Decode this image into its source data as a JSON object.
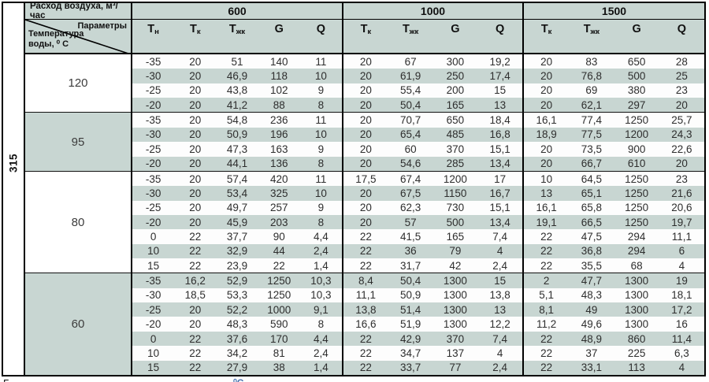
{
  "colors": {
    "shade": "#c8d6d2",
    "border": "#000000",
    "text": "#2e2e2e",
    "caption_blue": "#4a74b0"
  },
  "sidebar": {
    "model_label": "315"
  },
  "header": {
    "air_flow_label": "Расход воздуха, м³/час",
    "params_label": "Параметры",
    "water_temp_label": "Температура воды, ⁰ С",
    "groups": [
      {
        "label": "600",
        "columns": [
          {
            "key": "tn",
            "base": "Т",
            "sub": "н"
          },
          {
            "key": "tk",
            "base": "Т",
            "sub": "к"
          },
          {
            "key": "tzhk",
            "base": "Т",
            "sub": "жк"
          },
          {
            "key": "g",
            "base": "G",
            "sub": ""
          },
          {
            "key": "q",
            "base": "Q",
            "sub": ""
          }
        ]
      },
      {
        "label": "1000",
        "columns": [
          {
            "key": "tk",
            "base": "Т",
            "sub": "к"
          },
          {
            "key": "tzhk",
            "base": "Т",
            "sub": "жк"
          },
          {
            "key": "g",
            "base": "G",
            "sub": ""
          },
          {
            "key": "q",
            "base": "Q",
            "sub": ""
          }
        ]
      },
      {
        "label": "1500",
        "columns": [
          {
            "key": "tk",
            "base": "Т",
            "sub": "к"
          },
          {
            "key": "tzhk",
            "base": "Т",
            "sub": "жк"
          },
          {
            "key": "g",
            "base": "G",
            "sub": ""
          },
          {
            "key": "q",
            "base": "Q",
            "sub": ""
          }
        ]
      }
    ]
  },
  "blocks": [
    {
      "water_temp": "120",
      "rows": [
        {
          "c600": [
            "-35",
            "20",
            "51",
            "140",
            "11"
          ],
          "c1000": [
            "20",
            "67",
            "300",
            "19,2"
          ],
          "c1500": [
            "20",
            "83",
            "650",
            "28"
          ]
        },
        {
          "c600": [
            "-30",
            "20",
            "46,9",
            "118",
            "10"
          ],
          "c1000": [
            "20",
            "61,9",
            "250",
            "17,4"
          ],
          "c1500": [
            "20",
            "76,8",
            "500",
            "25"
          ]
        },
        {
          "c600": [
            "-25",
            "20",
            "43,8",
            "102",
            "9"
          ],
          "c1000": [
            "20",
            "55,4",
            "200",
            "15"
          ],
          "c1500": [
            "20",
            "69",
            "380",
            "23"
          ]
        },
        {
          "c600": [
            "-20",
            "20",
            "41,2",
            "88",
            "8"
          ],
          "c1000": [
            "20",
            "50,4",
            "165",
            "13"
          ],
          "c1500": [
            "20",
            "62,1",
            "297",
            "20"
          ]
        }
      ]
    },
    {
      "water_temp": "95",
      "rows": [
        {
          "c600": [
            "-35",
            "20",
            "54,8",
            "236",
            "11"
          ],
          "c1000": [
            "20",
            "70,7",
            "650",
            "18,4"
          ],
          "c1500": [
            "16,1",
            "77,4",
            "1250",
            "25,7"
          ]
        },
        {
          "c600": [
            "-30",
            "20",
            "50,9",
            "196",
            "10"
          ],
          "c1000": [
            "20",
            "65,4",
            "485",
            "16,8"
          ],
          "c1500": [
            "18,9",
            "77,5",
            "1200",
            "24,3"
          ]
        },
        {
          "c600": [
            "-25",
            "20",
            "47,3",
            "163",
            "9"
          ],
          "c1000": [
            "20",
            "60",
            "370",
            "15,1"
          ],
          "c1500": [
            "20",
            "73,5",
            "900",
            "22,6"
          ]
        },
        {
          "c600": [
            "-20",
            "20",
            "44,1",
            "136",
            "8"
          ],
          "c1000": [
            "20",
            "54,6",
            "285",
            "13,4"
          ],
          "c1500": [
            "20",
            "66,7",
            "610",
            "20"
          ]
        }
      ]
    },
    {
      "water_temp": "80",
      "rows": [
        {
          "c600": [
            "-35",
            "20",
            "57,4",
            "420",
            "11"
          ],
          "c1000": [
            "17,5",
            "67,4",
            "1200",
            "17"
          ],
          "c1500": [
            "10",
            "64,5",
            "1250",
            "23"
          ]
        },
        {
          "c600": [
            "-30",
            "20",
            "53,4",
            "325",
            "10"
          ],
          "c1000": [
            "20",
            "67,5",
            "1150",
            "16,7"
          ],
          "c1500": [
            "13",
            "65,1",
            "1250",
            "21,6"
          ]
        },
        {
          "c600": [
            "-25",
            "20",
            "49,7",
            "257",
            "9"
          ],
          "c1000": [
            "20",
            "62,3",
            "730",
            "15,1"
          ],
          "c1500": [
            "16,1",
            "65,8",
            "1250",
            "20,6"
          ]
        },
        {
          "c600": [
            "-20",
            "20",
            "45,9",
            "203",
            "8"
          ],
          "c1000": [
            "20",
            "57",
            "500",
            "13,4"
          ],
          "c1500": [
            "19,1",
            "66,5",
            "1250",
            "19,7"
          ]
        },
        {
          "c600": [
            "0",
            "22",
            "37,7",
            "90",
            "4,4"
          ],
          "c1000": [
            "22",
            "41,5",
            "165",
            "7,4"
          ],
          "c1500": [
            "22",
            "47,5",
            "294",
            "11,1"
          ]
        },
        {
          "c600": [
            "10",
            "22",
            "32,9",
            "44",
            "2,4"
          ],
          "c1000": [
            "22",
            "36",
            "79",
            "4"
          ],
          "c1500": [
            "22",
            "36,8",
            "294",
            "6"
          ]
        },
        {
          "c600": [
            "15",
            "22",
            "23,9",
            "22",
            "1,4"
          ],
          "c1000": [
            "22",
            "31,7",
            "42",
            "2,4"
          ],
          "c1500": [
            "22",
            "35,5",
            "68",
            "4"
          ]
        }
      ]
    },
    {
      "water_temp": "60",
      "rows": [
        {
          "c600": [
            "-35",
            "16,2",
            "52,9",
            "1250",
            "10,3"
          ],
          "c1000": [
            "8,4",
            "50,4",
            "1300",
            "15"
          ],
          "c1500": [
            "2",
            "47,7",
            "1300",
            "19"
          ]
        },
        {
          "c600": [
            "-30",
            "18,5",
            "53,3",
            "1250",
            "10,3"
          ],
          "c1000": [
            "11,1",
            "50,9",
            "1300",
            "13,8"
          ],
          "c1500": [
            "5,1",
            "48,3",
            "1300",
            "18,1"
          ]
        },
        {
          "c600": [
            "-25",
            "20",
            "52,2",
            "1000",
            "9,1"
          ],
          "c1000": [
            "13,8",
            "51,4",
            "1300",
            "13"
          ],
          "c1500": [
            "8,1",
            "49",
            "1300",
            "17,2"
          ]
        },
        {
          "c600": [
            "-20",
            "20",
            "48,3",
            "590",
            "8"
          ],
          "c1000": [
            "16,6",
            "51,9",
            "1300",
            "12,2"
          ],
          "c1500": [
            "11,2",
            "49,6",
            "1300",
            "16"
          ]
        },
        {
          "c600": [
            "0",
            "22",
            "37,6",
            "170",
            "4,4"
          ],
          "c1000": [
            "22",
            "42,9",
            "370",
            "7,4"
          ],
          "c1500": [
            "22",
            "48,9",
            "860",
            "11,4"
          ]
        },
        {
          "c600": [
            "10",
            "22",
            "34,2",
            "81",
            "2,4"
          ],
          "c1000": [
            "22",
            "34,7",
            "137",
            "4"
          ],
          "c1500": [
            "22",
            "37",
            "225",
            "6,3"
          ]
        },
        {
          "c600": [
            "15",
            "22",
            "27,9",
            "38",
            "1,4"
          ],
          "c1000": [
            "22",
            "33,7",
            "77",
            "2,4"
          ],
          "c1500": [
            "22",
            "33,1",
            "113",
            "4"
          ]
        }
      ]
    }
  ],
  "caption": {
    "left_fragment": "Г",
    "unit_fragment": "⁰С"
  }
}
